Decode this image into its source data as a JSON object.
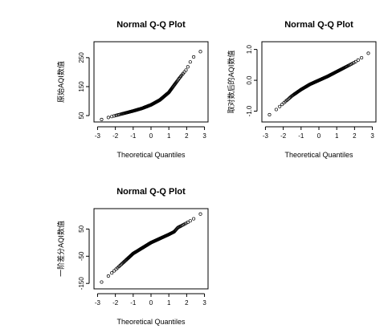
{
  "chart_data": [
    {
      "type": "scatter",
      "title": "Normal Q-Q Plot",
      "xlabel": "Theoretical Quantiles",
      "ylabel": "原始AQI数值",
      "xlim": [
        -3.2,
        3.2
      ],
      "ylim": [
        28,
        305
      ],
      "xticks": [
        -3,
        -2,
        -1,
        0,
        1,
        2,
        3
      ],
      "yticks": [
        50,
        150,
        250
      ],
      "ytick_labels": [
        "50",
        "150",
        "250"
      ],
      "grid": false,
      "quantile_curve": [
        [
          -3.0,
          32
        ],
        [
          -2.6,
          40
        ],
        [
          -2.0,
          50
        ],
        [
          -1.5,
          58
        ],
        [
          -1.0,
          66
        ],
        [
          -0.5,
          75
        ],
        [
          0.0,
          87
        ],
        [
          0.5,
          104
        ],
        [
          1.0,
          130
        ],
        [
          1.3,
          155
        ],
        [
          1.6,
          180
        ],
        [
          1.8,
          195
        ],
        [
          2.0,
          210
        ],
        [
          2.2,
          235
        ],
        [
          2.5,
          262
        ],
        [
          2.75,
          268
        ],
        [
          3.0,
          298
        ]
      ]
    },
    {
      "type": "scatter",
      "title": "Normal Q-Q Plot",
      "xlabel": "Theoretical Quantiles",
      "ylabel": "取对数后的AQI数值",
      "xlim": [
        -3.2,
        3.2
      ],
      "ylim": [
        -1.35,
        1.25
      ],
      "xticks": [
        -3,
        -2,
        -1,
        0,
        1,
        2,
        3
      ],
      "yticks": [
        -1.0,
        0.0,
        1.0
      ],
      "ytick_labels": [
        "-1.0",
        "0.0",
        "1.0"
      ],
      "grid": false,
      "quantile_curve": [
        [
          -3.0,
          -1.2
        ],
        [
          -2.6,
          -1.05
        ],
        [
          -2.0,
          -0.75
        ],
        [
          -1.5,
          -0.5
        ],
        [
          -1.0,
          -0.3
        ],
        [
          -0.5,
          -0.13
        ],
        [
          0.0,
          0.0
        ],
        [
          0.5,
          0.13
        ],
        [
          1.0,
          0.28
        ],
        [
          1.5,
          0.43
        ],
        [
          2.0,
          0.58
        ],
        [
          2.5,
          0.77
        ],
        [
          2.75,
          0.85
        ],
        [
          3.0,
          1.12
        ]
      ]
    },
    {
      "type": "scatter",
      "title": "Normal Q-Q Plot",
      "xlabel": "Theoretical Quantiles",
      "ylabel": "一阶差分AQI数值",
      "xlim": [
        -3.2,
        3.2
      ],
      "ylim": [
        -170,
        125
      ],
      "xticks": [
        -3,
        -2,
        -1,
        0,
        1,
        2,
        3
      ],
      "yticks": [
        -150,
        -50,
        50
      ],
      "ytick_labels": [
        "-150",
        "-50",
        "50"
      ],
      "grid": false,
      "quantile_curve": [
        [
          -3.0,
          -158
        ],
        [
          -2.6,
          -135
        ],
        [
          -2.0,
          -100
        ],
        [
          -1.5,
          -70
        ],
        [
          -1.0,
          -40
        ],
        [
          -0.5,
          -20
        ],
        [
          0.0,
          0
        ],
        [
          0.5,
          15
        ],
        [
          1.0,
          30
        ],
        [
          1.3,
          40
        ],
        [
          1.5,
          55
        ],
        [
          2.0,
          72
        ],
        [
          2.5,
          92
        ],
        [
          2.75,
          105
        ],
        [
          3.0,
          108
        ]
      ]
    }
  ]
}
